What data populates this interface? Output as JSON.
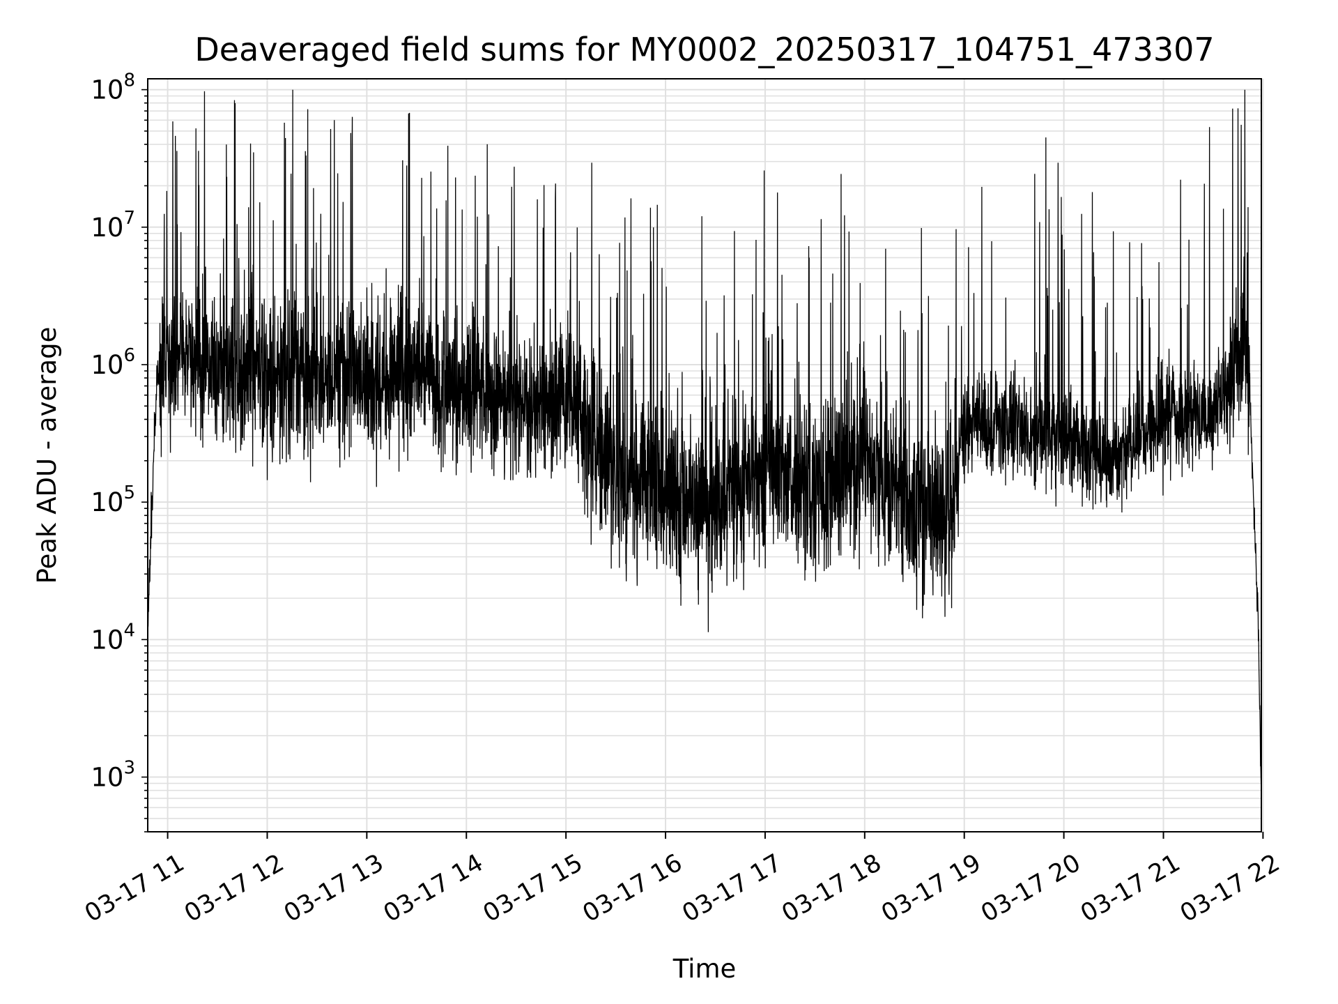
{
  "chart_data": {
    "type": "line",
    "title": "Deaveraged field sums for MY0002_20250317_104751_473307",
    "xlabel": "Time",
    "ylabel": "Peak ADU - average",
    "y_scale": "log",
    "ylim": [
      400,
      120000000
    ],
    "xlim": [
      "2025-03-17 10:48",
      "2025-03-17 21:59"
    ],
    "grid": {
      "major": true,
      "minor": true
    },
    "line_color": "#000000",
    "grid_color": "#e0e0e0",
    "x_tick_labels": [
      "03-17 11",
      "03-17 12",
      "03-17 13",
      "03-17 14",
      "03-17 15",
      "03-17 16",
      "03-17 17",
      "03-17 18",
      "03-17 19",
      "03-17 20",
      "03-17 21",
      "03-17 22"
    ],
    "y_ticks": [
      {
        "base": "10",
        "exp": "3",
        "value": 1000
      },
      {
        "base": "10",
        "exp": "4",
        "value": 10000
      },
      {
        "base": "10",
        "exp": "5",
        "value": 100000
      },
      {
        "base": "10",
        "exp": "6",
        "value": 1000000
      },
      {
        "base": "10",
        "exp": "7",
        "value": 10000000
      },
      {
        "base": "10",
        "exp": "8",
        "value": 100000000
      }
    ],
    "series": [
      {
        "x": [
          "2025-03-17 10:48",
          "2025-03-17 10:50",
          "2025-03-17 10:52",
          "2025-03-17 10:54",
          "2025-03-17 11:00",
          "2025-03-17 11:15",
          "2025-03-17 11:30",
          "2025-03-17 11:45",
          "2025-03-17 12:00",
          "2025-03-17 12:30",
          "2025-03-17 13:00",
          "2025-03-17 13:30",
          "2025-03-17 14:00",
          "2025-03-17 14:30",
          "2025-03-17 15:00",
          "2025-03-17 15:30",
          "2025-03-17 16:00",
          "2025-03-17 16:30",
          "2025-03-17 17:00",
          "2025-03-17 17:30",
          "2025-03-17 18:00",
          "2025-03-17 18:30",
          "2025-03-17 18:50",
          "2025-03-17 19:00",
          "2025-03-17 19:30",
          "2025-03-17 20:00",
          "2025-03-17 20:30",
          "2025-03-17 21:00",
          "2025-03-17 21:30",
          "2025-03-17 21:50",
          "2025-03-17 21:52",
          "2025-03-17 21:55",
          "2025-03-17 21:57",
          "2025-03-17 21:59"
        ],
        "y": [
          12000,
          60000,
          300000,
          900000,
          1000000,
          1100000,
          1000000,
          900000,
          900000,
          800000,
          800000,
          800000,
          700000,
          500000,
          600000,
          150000,
          120000,
          100000,
          180000,
          120000,
          200000,
          100000,
          60000,
          350000,
          350000,
          300000,
          200000,
          400000,
          450000,
          1500000,
          700000,
          60000,
          15000,
          800
        ]
      }
    ]
  }
}
